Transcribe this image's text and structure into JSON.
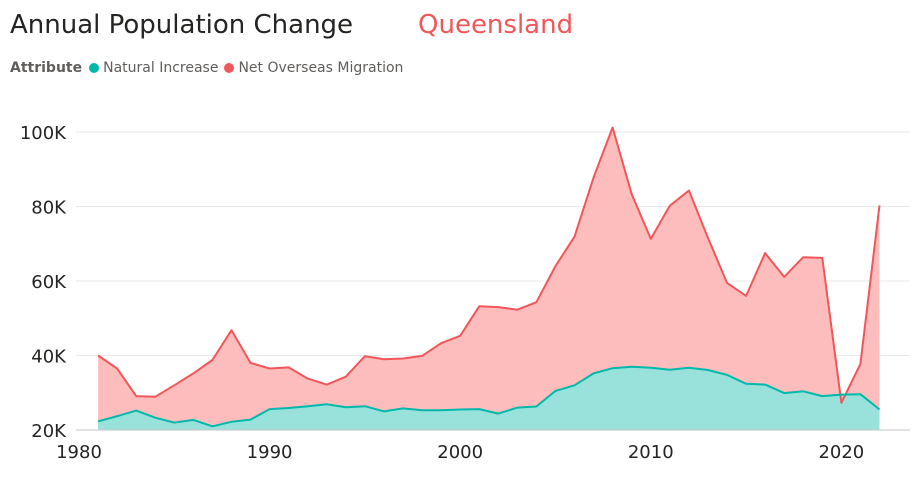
{
  "header": {
    "title": "Annual Population Change",
    "subtitle": "Queensland"
  },
  "legend": {
    "label": "Attribute",
    "items": [
      {
        "name": "Natural Increase",
        "color": "#01b8aa"
      },
      {
        "name": "Net Overseas Migration",
        "color": "#f0575a"
      }
    ]
  },
  "chart_data": {
    "type": "area",
    "title": "Annual Population Change",
    "subtitle": "Queensland",
    "x": [
      1981,
      1982,
      1983,
      1984,
      1985,
      1986,
      1987,
      1988,
      1989,
      1990,
      1991,
      1992,
      1993,
      1994,
      1995,
      1996,
      1997,
      1998,
      1999,
      2000,
      2001,
      2002,
      2003,
      2004,
      2005,
      2006,
      2007,
      2008,
      2009,
      2010,
      2011,
      2012,
      2013,
      2014,
      2015,
      2016,
      2017,
      2018,
      2019,
      2020,
      2021,
      2022
    ],
    "series": [
      {
        "name": "Natural Increase",
        "color": "#01b8aa",
        "fill": "#98e2db",
        "values": [
          22300,
          23700,
          25200,
          23300,
          22000,
          22700,
          21000,
          22200,
          22800,
          25600,
          25900,
          26400,
          26900,
          26100,
          26400,
          25000,
          25800,
          25300,
          25300,
          25500,
          25600,
          24400,
          26000,
          26300,
          30500,
          32000,
          35200,
          36600,
          37000,
          36700,
          36200,
          36700,
          36100,
          34800,
          32400,
          32200,
          29900,
          30400,
          29100,
          29500,
          29600,
          25500
        ]
      },
      {
        "name": "Net Overseas Migration",
        "color": "#f0575a",
        "fill": "#fdbdbd",
        "values": [
          40000,
          36500,
          29100,
          28900,
          32000,
          35200,
          38800,
          46800,
          38000,
          36500,
          36800,
          33800,
          32200,
          34300,
          39800,
          39000,
          39200,
          39900,
          43300,
          45300,
          53200,
          53000,
          52300,
          54300,
          64000,
          71900,
          87800,
          101200,
          83300,
          71300,
          80200,
          84300,
          71600,
          59500,
          56000,
          67500,
          61100,
          66400,
          66200,
          27300,
          37700,
          80300
        ]
      }
    ],
    "xlim": [
      1980,
      2023
    ],
    "ylim": [
      20000,
      105000
    ],
    "x_ticks": [
      {
        "value": 1980,
        "label": "1980"
      },
      {
        "value": 1990,
        "label": "1990"
      },
      {
        "value": 2000,
        "label": "2000"
      },
      {
        "value": 2010,
        "label": "2010"
      },
      {
        "value": 2020,
        "label": "2020"
      }
    ],
    "y_ticks": [
      {
        "value": 20000,
        "label": "20K"
      },
      {
        "value": 40000,
        "label": "40K"
      },
      {
        "value": 60000,
        "label": "60K"
      },
      {
        "value": 80000,
        "label": "80K"
      },
      {
        "value": 100000,
        "label": "100K"
      }
    ],
    "grid": true,
    "legend_position": "top-left"
  }
}
